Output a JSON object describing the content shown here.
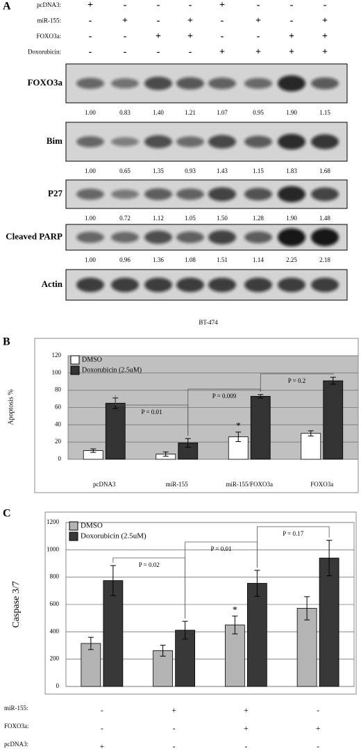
{
  "panel_a": {
    "label": "A",
    "treatments": [
      {
        "name": "pcDNA3:",
        "signs": [
          "+",
          "-",
          "-",
          "-",
          "+",
          "-",
          "-",
          "-"
        ]
      },
      {
        "name": "miR-155:",
        "signs": [
          "-",
          "+",
          "-",
          "+",
          "-",
          "+",
          "-",
          "+"
        ]
      },
      {
        "name": "FOXO3a:",
        "signs": [
          "-",
          "-",
          "+",
          "+",
          "-",
          "-",
          "+",
          "+"
        ]
      },
      {
        "name": "Doxorubicin:",
        "signs": [
          "-",
          "-",
          "-",
          "-",
          "+",
          "+",
          "+",
          "+"
        ]
      }
    ],
    "blots": [
      {
        "name": "FOXO3a",
        "values": [
          "1.00",
          "0.83",
          "1.40",
          "1.21",
          "1.07",
          "0.95",
          "1.90",
          "1.15"
        ]
      },
      {
        "name": "Bim",
        "values": [
          "1.00",
          "0.65",
          "1.35",
          "0.93",
          "1.43",
          "1.15",
          "1.83",
          "1.68"
        ]
      },
      {
        "name": "P27",
        "values": [
          "1.00",
          "0.72",
          "1.12",
          "1.05",
          "1.50",
          "1.28",
          "1.90",
          "1.48"
        ]
      },
      {
        "name": "Cleaved PARP",
        "values": [
          "1.00",
          "0.96",
          "1.36",
          "1.08",
          "1.51",
          "1.14",
          "2.25",
          "2.18"
        ]
      },
      {
        "name": "Actin"
      }
    ],
    "caption": "BT-474"
  },
  "chart_data": [
    {
      "type": "bar",
      "panel": "B",
      "ylabel": "Apoptosis %",
      "categories": [
        "pcDNA3",
        "miR-155",
        "miR-155/FOXO3a",
        "FOXO3a"
      ],
      "series": [
        {
          "name": "DMSO",
          "color": "#ffffff",
          "values": [
            10,
            6,
            26,
            30
          ],
          "errors": [
            2,
            2.5,
            5.5,
            3
          ]
        },
        {
          "name": "Doxorubicin (2.5uM)",
          "color": "#333333",
          "values": [
            65,
            19,
            73,
            91
          ],
          "errors": [
            6,
            5,
            2,
            4
          ]
        }
      ],
      "ylim": [
        0,
        120
      ],
      "yticks": [
        0,
        20,
        40,
        60,
        80,
        100,
        120
      ],
      "grid": true,
      "background": "#c0c0c0",
      "annotations": [
        "P = 0.01",
        "P = 0.009",
        "P = 0.2",
        "*"
      ]
    },
    {
      "type": "bar",
      "panel": "C",
      "ylabel": "Caspase 3/7",
      "series": [
        {
          "name": "DMSO",
          "color": "#b4b4b4",
          "values": [
            315,
            262,
            450,
            572
          ],
          "errors": [
            45,
            40,
            65,
            85
          ]
        },
        {
          "name": "Doxorubicin (2.5uM)",
          "color": "#383838",
          "values": [
            775,
            412,
            755,
            940
          ],
          "errors": [
            110,
            65,
            95,
            130
          ]
        }
      ],
      "ylim": [
        0,
        1200
      ],
      "yticks": [
        0,
        200,
        400,
        600,
        800,
        1000,
        1200
      ],
      "grid": true,
      "background": "#ffffff",
      "annotations": [
        "P = 0.02",
        "P = 0.01",
        "P = 0.17",
        "*"
      ],
      "treatments": [
        {
          "name": "miR-155:",
          "signs": [
            "-",
            "+",
            "+",
            "-"
          ]
        },
        {
          "name": "FOXO3a:",
          "signs": [
            "-",
            "-",
            "+",
            "+"
          ]
        },
        {
          "name": "pcDNA3:",
          "signs": [
            "+",
            "-",
            "-",
            "-"
          ]
        }
      ]
    }
  ]
}
